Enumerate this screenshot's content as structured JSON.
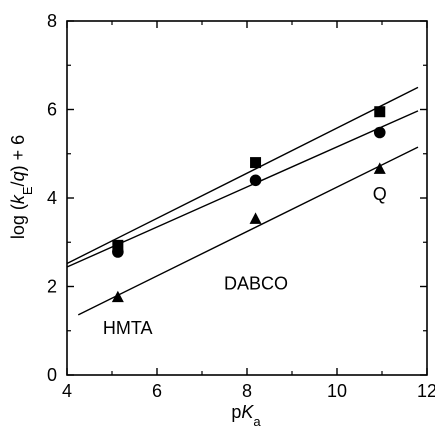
{
  "chart_data": {
    "type": "scatter",
    "xlabel": {
      "prefix": "p",
      "italic": "K",
      "subscript": "a"
    },
    "ylabel": {
      "prefix": "log (",
      "italic_k": "k",
      "subscript_e": "E",
      "slash": "/",
      "italic_q": "q",
      "suffix": ") + 6"
    },
    "xlim": [
      4,
      12
    ],
    "ylim": [
      0,
      8
    ],
    "x_ticks": [
      4,
      6,
      8,
      10,
      12
    ],
    "y_ticks": [
      0,
      2,
      4,
      6,
      8
    ],
    "x_tick_labels": [
      "4",
      "6",
      "8",
      "10",
      "12"
    ],
    "y_tick_labels": [
      "0",
      "2",
      "4",
      "6",
      "8"
    ],
    "grid": false,
    "series": [
      {
        "marker": "square",
        "x": [
          5.13,
          8.19,
          10.95
        ],
        "y": [
          2.93,
          4.8,
          5.95
        ],
        "line": {
          "x": [
            4.0,
            11.8
          ],
          "y": [
            2.52,
            6.5
          ]
        }
      },
      {
        "marker": "circle",
        "x": [
          5.13,
          8.19,
          10.95
        ],
        "y": [
          2.78,
          4.4,
          5.48
        ],
        "line": {
          "x": [
            4.0,
            11.8
          ],
          "y": [
            2.44,
            5.97
          ]
        }
      },
      {
        "marker": "triangle",
        "x": [
          5.13,
          8.19,
          10.95
        ],
        "y": [
          1.75,
          3.52,
          4.65
        ],
        "line": {
          "x": [
            4.25,
            11.8
          ],
          "y": [
            1.36,
            5.15
          ]
        }
      }
    ],
    "annotations": [
      {
        "text": "HMTA",
        "x": 5.35,
        "y": 0.93
      },
      {
        "text": "DABCO",
        "x": 8.2,
        "y": 1.93
      },
      {
        "text": "Q",
        "x": 10.95,
        "y": 3.95
      }
    ],
    "colors": {
      "axis": "#000000",
      "marker": "#000000",
      "line": "#000000"
    }
  }
}
